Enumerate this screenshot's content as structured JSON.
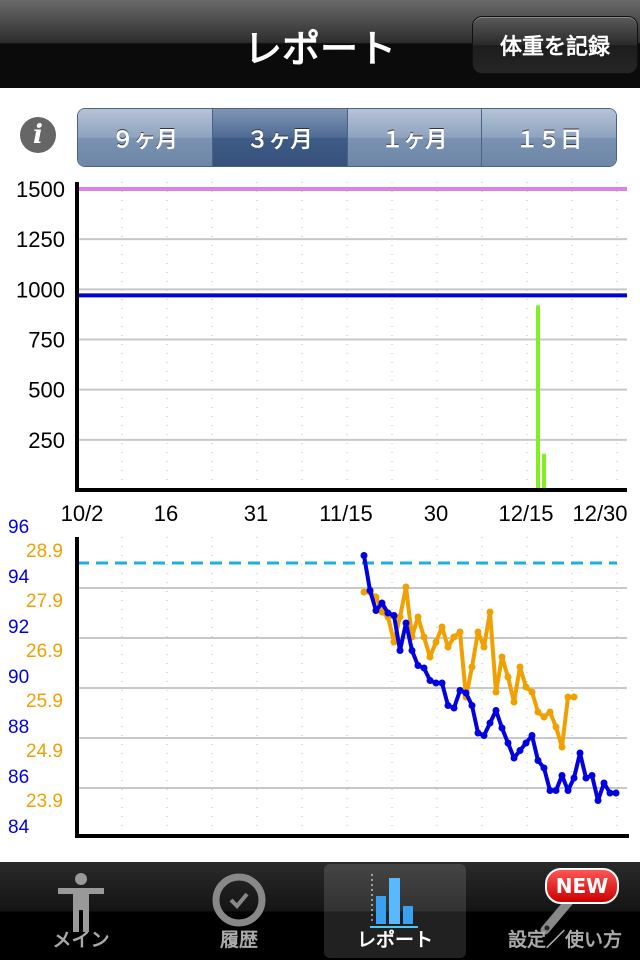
{
  "navbar": {
    "title": "レポート",
    "record_button": "体重を記録"
  },
  "info_icon": "info-icon",
  "range_selector": {
    "options": [
      "９ヶ月",
      "３ヶ月",
      "１ヶ月",
      "１５日"
    ],
    "selected": "３ヶ月"
  },
  "chart_data": [
    {
      "type": "bar",
      "y_ticks": [
        "1500",
        "1250",
        "1000",
        "750",
        "500",
        "250"
      ],
      "ylim": [
        0,
        1500
      ],
      "x_ticks": [
        {
          "date": "10/2",
          "label": "10/2"
        },
        {
          "date": "10/16",
          "label": "16"
        },
        {
          "date": "10/31",
          "label": "31"
        },
        {
          "date": "11/15",
          "label": "11/15"
        },
        {
          "date": "11/30",
          "label": "30"
        },
        {
          "date": "12/15",
          "label": "12/15"
        },
        {
          "date": "12/30",
          "label": "12/30"
        }
      ],
      "xlim": [
        "10/2",
        "12/30"
      ],
      "grid": true,
      "reference_lines": [
        {
          "value": 1500,
          "color": "#e080e0"
        },
        {
          "value": 970,
          "color": "#0000e0"
        }
      ],
      "bar_color": "#80f020",
      "bars": [
        {
          "date": "12/17",
          "value": 920
        },
        {
          "date": "12/18",
          "value": 180
        }
      ]
    },
    {
      "type": "line",
      "left_axis_weight": {
        "ticks": [
          "96",
          "94",
          "92",
          "90",
          "88",
          "86",
          "84"
        ],
        "ylim": [
          84,
          96
        ],
        "color": "#0000e0"
      },
      "left_axis_bmi": {
        "ticks": [
          "28.9",
          "27.9",
          "26.9",
          "25.9",
          "24.9",
          "23.9"
        ],
        "color": "#f0a000"
      },
      "target_line": {
        "value": 95,
        "color": "#1ab0e0",
        "style": "dashed"
      },
      "grid": true,
      "series": [
        {
          "axis": "weight",
          "color": "#0000e0",
          "start_date": "11/18",
          "values": [
            95.3,
            93.9,
            93.1,
            93.4,
            93.0,
            92.9,
            91.5,
            92.6,
            91.5,
            90.9,
            90.8,
            90.3,
            90.2,
            90.2,
            89.3,
            89.2,
            89.9,
            89.8,
            89.3,
            88.2,
            88.1,
            88.6,
            89.1,
            88.4,
            87.8,
            87.2,
            87.5,
            87.8,
            88.1,
            87.1,
            86.8,
            85.9,
            85.9,
            86.5,
            85.9,
            86.4,
            87.4,
            86.4,
            86.5,
            85.5,
            86.2,
            85.8,
            85.8
          ]
        },
        {
          "axis": "bmi",
          "color": "#f0a000",
          "start_date": "11/18",
          "values": [
            28.3,
            28.3,
            28.2,
            27.9,
            27.8,
            27.3,
            27.8,
            28.4,
            27.4,
            27.8,
            27.4,
            27.0,
            27.3,
            27.6,
            27.2,
            27.4,
            27.5,
            26.2,
            26.8,
            27.5,
            27.2,
            27.9,
            26.3,
            27.0,
            26.6,
            26.1,
            26.8,
            26.4,
            26.3,
            25.9,
            25.8,
            25.9,
            25.6,
            25.2,
            26.2,
            26.2
          ]
        }
      ]
    }
  ],
  "tabbar": {
    "tabs": [
      {
        "label": "メイン",
        "icon": "person-icon"
      },
      {
        "label": "履歴",
        "icon": "clock-icon"
      },
      {
        "label": "レポート",
        "icon": "bar-chart-icon",
        "active": true
      },
      {
        "label": "設定／使い方",
        "icon": "wrench-icon"
      }
    ],
    "new_badge": "NEW"
  }
}
